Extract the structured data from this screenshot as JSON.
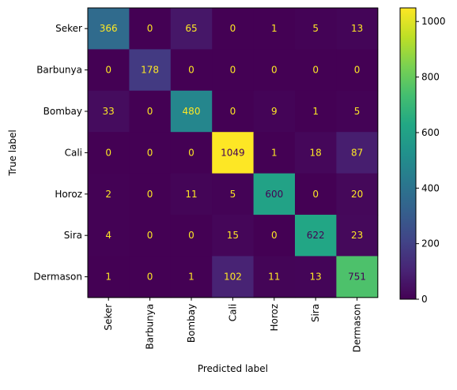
{
  "chart_data": {
    "type": "heatmap",
    "colormap": "viridis",
    "x_categories": [
      "Seker",
      "Barbunya",
      "Bombay",
      "Cali",
      "Horoz",
      "Sira",
      "Dermason"
    ],
    "y_categories": [
      "Seker",
      "Barbunya",
      "Bombay",
      "Cali",
      "Horoz",
      "Sira",
      "Dermason"
    ],
    "matrix": [
      [
        366,
        0,
        65,
        0,
        1,
        5,
        13
      ],
      [
        0,
        178,
        0,
        0,
        0,
        0,
        0
      ],
      [
        33,
        0,
        480,
        0,
        9,
        1,
        5
      ],
      [
        0,
        0,
        0,
        1049,
        1,
        18,
        87
      ],
      [
        2,
        0,
        11,
        5,
        600,
        0,
        20
      ],
      [
        4,
        0,
        0,
        15,
        0,
        622,
        23
      ],
      [
        1,
        0,
        1,
        102,
        11,
        13,
        751
      ]
    ],
    "xlabel": "Predicted label",
    "ylabel": "True label",
    "vmin": 0,
    "vmax": 1049,
    "colorbar_ticks": [
      0,
      200,
      400,
      600,
      800,
      1000
    ],
    "text_color_light": "#fde725",
    "text_color_dark": "#440154"
  }
}
